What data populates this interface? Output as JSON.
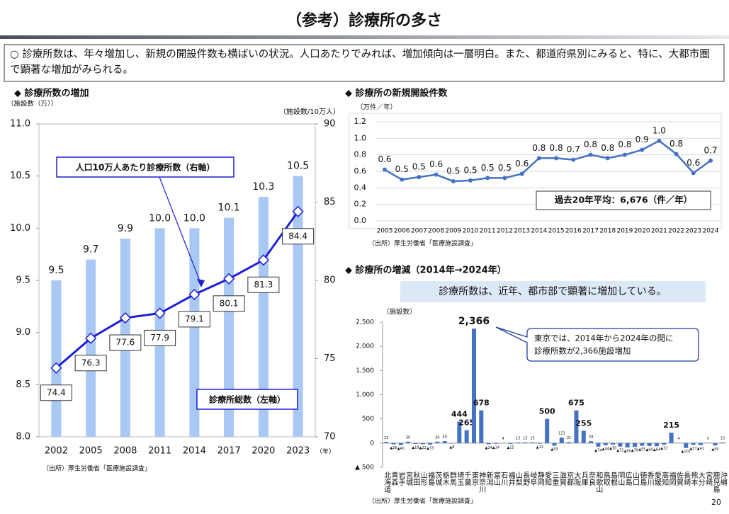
{
  "title": "（参考）診療所の多さ",
  "summary": "○ 診療所数は、年々増加し、新規の開設件数も横ばいの状況。人口あたりでみれば、増加傾向は一層明白。また、都道府県別にみると、特に、大都市圏で顕著な増加がみられる。",
  "page_number": "20",
  "chart_data": [
    {
      "type": "bar",
      "title": "◆ 診療所数の増加",
      "y_label": "（施設数（万））",
      "y2_label": "（施設数/10万人）",
      "x_label": "（年）",
      "categories": [
        "2002",
        "2005",
        "2008",
        "2011",
        "2014",
        "2017",
        "2020",
        "2023"
      ],
      "series": [
        {
          "name": "診療所総数（左軸）",
          "color": "#a9c8f4",
          "values": [
            9.5,
            9.7,
            9.9,
            10.0,
            10.0,
            10.1,
            10.3,
            10.5
          ],
          "value_labels": [
            "9.5",
            "9.7",
            "9.9",
            "10.0",
            "10.0",
            "10.1",
            "10.3",
            "10.5"
          ]
        },
        {
          "name": "人口10万人あたり診療所数（右軸）",
          "color": "#1f1fd6",
          "axis": "y2",
          "values": [
            74.4,
            76.3,
            77.6,
            77.9,
            79.1,
            80.1,
            81.3,
            84.4
          ]
        }
      ],
      "ylim": [
        8,
        11
      ],
      "yticks": [
        {
          "value": 8,
          "label": "8.0"
        },
        8.5,
        {
          "value": 9,
          "label": "9.0"
        },
        9.5,
        {
          "value": 10,
          "label": "10.0"
        },
        10.5,
        {
          "value": 11,
          "label": "11.0"
        }
      ],
      "y2lim": [
        70,
        90
      ],
      "y2ticks": [
        70,
        75,
        80,
        85,
        90
      ],
      "source": "（出所）厚生労働省「医療施設調査」"
    },
    {
      "type": "line",
      "title": "◆ 診療所の新規開設件数",
      "y_label": "（万件／年）",
      "color": "#4472c4",
      "categories": [
        "2005",
        "2006",
        "2007",
        "2008",
        "2009",
        "2010",
        "2011",
        "2012",
        "2013",
        "2014",
        "2015",
        "2016",
        "2017",
        "2018",
        "2019",
        "2020",
        "2021",
        "2022",
        "2023",
        "2024"
      ],
      "values": [
        0.62,
        0.5,
        0.53,
        0.56,
        0.48,
        0.49,
        0.52,
        0.52,
        0.57,
        0.76,
        0.76,
        0.74,
        0.8,
        0.76,
        0.8,
        0.86,
        0.97,
        0.81,
        0.58,
        0.73
      ],
      "value_labels": [
        "0.6",
        "0.5",
        "0.5",
        "0.6",
        "0.5",
        "0.5",
        "0.5",
        "0.5",
        "0.6",
        "0.8",
        "0.8",
        "0.7",
        "0.8",
        "0.8",
        "0.8",
        "0.9",
        "1.0",
        "0.8",
        "0.6",
        "0.7"
      ],
      "ylim": [
        0,
        1.2
      ],
      "yticks": [
        {
          "value": 0,
          "label": "0.0"
        },
        0.2,
        0.4,
        0.6,
        0.8,
        {
          "value": 1,
          "label": "1.0"
        },
        1.2
      ],
      "grid": true,
      "annotation": "過去20年平均：6,676（件／年）",
      "source": "（出所）厚生労働省「医療施設調査」"
    },
    {
      "type": "bar",
      "title": "◆ 診療所の増減（2014年→2024年）",
      "subtitle": "診療所数は、近年、都市部で顕著に増加している。",
      "y_label": "（施設数）",
      "color": "#4472c4",
      "categories": [
        "北海道",
        "青森",
        "岩手",
        "宮城",
        "秋田",
        "山形",
        "福島",
        "茨城",
        "栃木",
        "群馬",
        "埼玉",
        "千葉",
        "東京",
        "神奈川",
        "新潟",
        "富山",
        "石川",
        "福井",
        "山梨",
        "長野",
        "岐阜",
        "静岡",
        "愛知",
        "三重",
        "滋賀",
        "京都",
        "大阪",
        "兵庫",
        "奈良",
        "和歌山",
        "鳥取",
        "島根",
        "岡山",
        "広島",
        "山口",
        "徳島",
        "香川",
        "愛媛",
        "高知",
        "福岡",
        "佐賀",
        "長崎",
        "熊本",
        "大分",
        "宮崎",
        "鹿児島",
        "沖縄"
      ],
      "values": [
        23,
        -26,
        -40,
        30,
        -18,
        -22,
        -33,
        30,
        40,
        -8,
        444,
        265,
        2366,
        678,
        -24,
        -14,
        4,
        -15,
        13,
        15,
        15,
        -13,
        500,
        -53,
        113,
        21,
        675,
        255,
        39,
        -74,
        -44,
        -30,
        -72,
        -90,
        -78,
        -55,
        -60,
        -64,
        -32,
        215,
        4,
        -101,
        -37,
        -41,
        5,
        -50,
        13
      ],
      "value_labels": [
        "23",
        "▲26",
        "▲40",
        "30",
        "▲18",
        "▲22",
        "▲33",
        "30",
        "40",
        "▲8",
        "444",
        "265",
        "2,366",
        "678",
        "▲24",
        "▲14",
        "4",
        "▲15",
        "13",
        "15",
        "15",
        "▲13",
        "500",
        "▲53",
        "113",
        "21",
        "675",
        "255",
        "39",
        "▲74",
        "▲44",
        "▲30",
        "▲72",
        "▲90",
        "▲78",
        "▲55",
        "▲60",
        "▲64",
        "▲32",
        "215",
        "4",
        "▲101",
        "▲37",
        "▲41",
        "5",
        "▲50",
        "13"
      ],
      "ylim": [
        -500,
        2500
      ],
      "yticks": [
        {
          "value": -500,
          "label": "▲ 500"
        },
        0,
        500,
        {
          "value": 1000,
          "label": "1,000"
        },
        {
          "value": 1500,
          "label": "1,500"
        },
        {
          "value": 2000,
          "label": "2,000"
        },
        {
          "value": 2500,
          "label": "2,500"
        }
      ],
      "callout_lines": [
        "東京では、2014年から2024年の間に",
        "診療所数が2,366施設増加"
      ],
      "source": "（出所）厚生労働省「医療施設調査」"
    }
  ]
}
